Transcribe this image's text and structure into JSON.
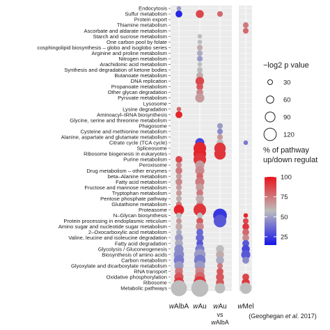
{
  "chart_data": {
    "type": "scatter",
    "x_groups": [
      "wAlbA",
      "wAu",
      "wAu vs wAlbA",
      "wMel"
    ],
    "x_tick_labels": [
      {
        "italic": "w",
        "rest": "AlbA",
        "lines": []
      },
      {
        "italic": "w",
        "rest": "Au",
        "lines": []
      },
      {
        "italic": "w",
        "rest": "Au",
        "lines": [
          "vs",
          "wAlbA"
        ]
      },
      {
        "italic": "w",
        "rest": "Mel",
        "lines": []
      }
    ],
    "wmel_citation": {
      "pre": "(Geoghegan ",
      "italic": "et al",
      "post": ". 2017)"
    },
    "pathways": [
      "Endocytosis",
      "Sulfur metabolism",
      "Protein export",
      "Thiamine metabolism",
      "Ascorbate and aldarate metabolism",
      "Starch and sucrose metabolism",
      "One carbon pool by folate",
      "cosphingolipid biosynthesis – globo and isoglobo series",
      "Arginine and proline metabolism",
      "Nitrogen metabolism",
      "Arachidonic acid metabolism",
      "Synthesis and degradation of ketone bodies",
      "Butanoate metabolism",
      "DNA replication",
      "Propanoate metabolism",
      "Other glycan degradation",
      "Pyruvate metabolism",
      "Lysosome",
      "Lysine degradation",
      "Aminoacyl–tRNA biosynthesis",
      "Glycine, serine and threonine metabolism",
      "Phagosome",
      "Cysteine and methionine metabolism",
      "Alanine, aspartate and glutamate metabolism",
      "Citrate cycle (TCA cycle)",
      "Spliceosome",
      "Ribosome biogenesis in eukaryotes",
      "Purine metabolism",
      "Peroxisome",
      "Drug metabolism – other enzymes",
      "beta–Alanine metabolism",
      "Fatty acid metabolism",
      "Fructose and mannose metabolism",
      "Tryptophan metabolism",
      "Pentose phosphate pathway",
      "Glutathione metabolism",
      "Proteasome",
      "N–Glycan biosynthesis",
      "Protein processing in endoplasmic reticulum",
      "Amino sugar and nucleotide sugar metabolism",
      "2–Oxocarboxylic acid metabolism",
      "Valine, leucine and isoleucine degradation",
      "Fatty acid degradation",
      "Glycolysis / Gluconeogenesis",
      "Biosynthesis of amino acids",
      "Carbon metabolism",
      "Glyoxylate and dicarboxylate metabolism",
      "RNA transport",
      "Oxidative phosphorylation",
      "Ribosome",
      "Metabolic pathways"
    ],
    "size_legend": {
      "title": "−log2 p value",
      "values": [
        30,
        60,
        90,
        120
      ]
    },
    "color_legend": {
      "title_line1": "% of pathway",
      "title_line2": "up/down regulat",
      "values": [
        100,
        75,
        50,
        25
      ],
      "colors": {
        "high": "#e8141c",
        "mid": "#bdbdbd",
        "low": "#1515e8"
      }
    },
    "points": [
      [
        0,
        0,
        8,
        40
      ],
      [
        1,
        2,
        10,
        75
      ],
      [
        1,
        1,
        14,
        85
      ],
      [
        1,
        0,
        12,
        5
      ],
      [
        3,
        3,
        10,
        70
      ],
      [
        4,
        3,
        10,
        75
      ],
      [
        5,
        1,
        8,
        50
      ],
      [
        6,
        1,
        8,
        50
      ],
      [
        7,
        1,
        10,
        55
      ],
      [
        8,
        1,
        10,
        45
      ],
      [
        9,
        1,
        10,
        40
      ],
      [
        10,
        1,
        8,
        50
      ],
      [
        11,
        1,
        10,
        50
      ],
      [
        12,
        1,
        12,
        55
      ],
      [
        13,
        1,
        15,
        85
      ],
      [
        14,
        1,
        12,
        80
      ],
      [
        15,
        1,
        12,
        65
      ],
      [
        16,
        1,
        16,
        60
      ],
      [
        18,
        0,
        8,
        75
      ],
      [
        19,
        0,
        12,
        95
      ],
      [
        21,
        2,
        10,
        40
      ],
      [
        22,
        2,
        10,
        35
      ],
      [
        23,
        2,
        10,
        60
      ],
      [
        24,
        1,
        16,
        15
      ],
      [
        24,
        2,
        12,
        50
      ],
      [
        24,
        3,
        8,
        30
      ],
      [
        25,
        1,
        22,
        95
      ],
      [
        25,
        2,
        20,
        90
      ],
      [
        26,
        1,
        22,
        95
      ],
      [
        26,
        2,
        20,
        90
      ],
      [
        27,
        0,
        12,
        85
      ],
      [
        27,
        1,
        22,
        90
      ],
      [
        28,
        0,
        10,
        65
      ],
      [
        28,
        1,
        16,
        60
      ],
      [
        29,
        0,
        12,
        70
      ],
      [
        29,
        1,
        16,
        65
      ],
      [
        30,
        0,
        10,
        60
      ],
      [
        30,
        1,
        12,
        75
      ],
      [
        31,
        0,
        12,
        65
      ],
      [
        31,
        1,
        16,
        70
      ],
      [
        32,
        0,
        10,
        60
      ],
      [
        32,
        1,
        14,
        60
      ],
      [
        33,
        0,
        10,
        60
      ],
      [
        33,
        1,
        12,
        70
      ],
      [
        34,
        0,
        10,
        55
      ],
      [
        34,
        1,
        14,
        55
      ],
      [
        35,
        0,
        10,
        70
      ],
      [
        35,
        1,
        12,
        60
      ],
      [
        36,
        0,
        18,
        95
      ],
      [
        36,
        1,
        22,
        90
      ],
      [
        37,
        0,
        10,
        50
      ],
      [
        37,
        1,
        10,
        50
      ],
      [
        37,
        2,
        24,
        10
      ],
      [
        37,
        3,
        8,
        95
      ],
      [
        38,
        0,
        10,
        60
      ],
      [
        38,
        1,
        12,
        80
      ],
      [
        38,
        2,
        22,
        20
      ],
      [
        38,
        3,
        10,
        85
      ],
      [
        39,
        0,
        12,
        55
      ],
      [
        39,
        1,
        14,
        65
      ],
      [
        39,
        3,
        12,
        90
      ],
      [
        40,
        0,
        10,
        45
      ],
      [
        40,
        1,
        12,
        25
      ],
      [
        40,
        3,
        12,
        75
      ],
      [
        41,
        0,
        14,
        40
      ],
      [
        41,
        1,
        14,
        25
      ],
      [
        41,
        3,
        12,
        65
      ],
      [
        42,
        0,
        14,
        45
      ],
      [
        42,
        1,
        12,
        20
      ],
      [
        42,
        3,
        12,
        20
      ],
      [
        43,
        0,
        16,
        35
      ],
      [
        43,
        1,
        16,
        30
      ],
      [
        43,
        2,
        14,
        50
      ],
      [
        43,
        3,
        14,
        15
      ],
      [
        44,
        0,
        18,
        35
      ],
      [
        44,
        1,
        20,
        40
      ],
      [
        44,
        2,
        14,
        55
      ],
      [
        44,
        3,
        16,
        20
      ],
      [
        45,
        0,
        18,
        30
      ],
      [
        45,
        1,
        20,
        30
      ],
      [
        45,
        2,
        14,
        45
      ],
      [
        45,
        3,
        12,
        35
      ],
      [
        46,
        0,
        16,
        40
      ],
      [
        46,
        1,
        18,
        40
      ],
      [
        46,
        2,
        10,
        70
      ],
      [
        47,
        0,
        14,
        70
      ],
      [
        47,
        1,
        16,
        65
      ],
      [
        47,
        2,
        12,
        80
      ],
      [
        48,
        0,
        16,
        80
      ],
      [
        48,
        1,
        18,
        75
      ],
      [
        48,
        2,
        14,
        80
      ],
      [
        48,
        3,
        12,
        85
      ],
      [
        49,
        0,
        18,
        90
      ],
      [
        49,
        1,
        22,
        90
      ],
      [
        49,
        2,
        14,
        80
      ],
      [
        49,
        3,
        14,
        90
      ],
      [
        50,
        0,
        28,
        50
      ],
      [
        50,
        1,
        30,
        50
      ],
      [
        50,
        2,
        18,
        50
      ],
      [
        50,
        3,
        20,
        50
      ]
    ]
  }
}
